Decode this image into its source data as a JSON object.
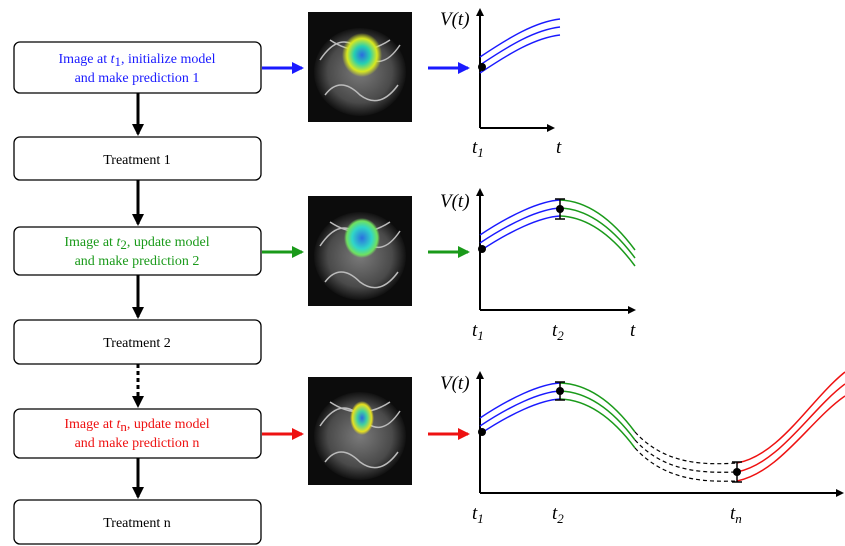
{
  "boxes": [
    {
      "line1": {
        "prefix": "Image at ",
        "var": "t",
        "sub": "1",
        "suffix": ", initialize model"
      },
      "line2": "and make prediction 1"
    },
    {
      "label": "Treatment 1"
    },
    {
      "line1": {
        "prefix": "Image at ",
        "var": "t",
        "sub": "2",
        "suffix": ", update model"
      },
      "line2": "and make prediction 2"
    },
    {
      "label": "Treatment 2"
    },
    {
      "line1": {
        "prefix": "Image at ",
        "var": "t",
        "sub": "n",
        "suffix": ", update model"
      },
      "line2": "and make prediction n"
    },
    {
      "label": "Treatment n"
    }
  ],
  "plots": [
    {
      "y_label": "V(t)",
      "x_labels": [
        {
          "var": "t",
          "sub": "1"
        },
        {
          "var": "t"
        }
      ]
    },
    {
      "y_label": "V(t)",
      "x_labels": [
        {
          "var": "t",
          "sub": "1"
        },
        {
          "var": "t",
          "sub": "2"
        },
        {
          "var": "t"
        }
      ]
    },
    {
      "y_label": "V(t)",
      "x_labels": [
        {
          "var": "t",
          "sub": "1"
        },
        {
          "var": "t",
          "sub": "2"
        },
        {
          "var": "t",
          "sub": "n"
        }
      ]
    }
  ]
}
